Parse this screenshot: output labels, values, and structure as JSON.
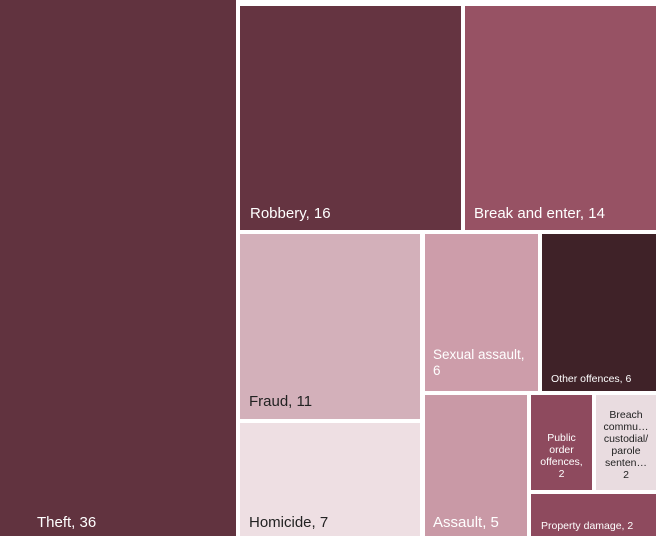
{
  "chart_data": {
    "type": "treemap",
    "title": "",
    "values_label_format": "{label}, {value}",
    "items": [
      {
        "label": "Theft",
        "value": 36,
        "color": "#61333F",
        "label_text": "Theft, 36"
      },
      {
        "label": "Robbery",
        "value": 16,
        "color": "#653441",
        "label_text": "Robbery, 16"
      },
      {
        "label": "Break and enter",
        "value": 14,
        "color": "#975264",
        "label_text": "Break and enter, 14"
      },
      {
        "label": "Fraud",
        "value": 11,
        "color": "#D3B0BA",
        "label_text": "Fraud, 11"
      },
      {
        "label": "Sexual assault",
        "value": 6,
        "color": "#CD9DAA",
        "label_text": "Sexual assault, 6"
      },
      {
        "label": "Other offences",
        "value": 6,
        "color": "#3F2228",
        "label_text": "Other offences, 6"
      },
      {
        "label": "Homicide",
        "value": 7,
        "color": "#EEDFE3",
        "label_text": "Homicide, 7"
      },
      {
        "label": "Assault",
        "value": 5,
        "color": "#C999A6",
        "label_text": "Assault, 5"
      },
      {
        "label": "Public order offences",
        "value": 2,
        "color": "#8E4A5E",
        "label_text": "Public order offences, 2"
      },
      {
        "label": "Breach community-based/custodial/parole sentences",
        "value": 2,
        "color": "#E9DCE0",
        "label_text": "Breach commu… custodial/ parole senten… 2"
      },
      {
        "label": "Property damage",
        "value": 2,
        "color": "#8E4A5E",
        "label_text": "Property damage, 2"
      }
    ]
  }
}
